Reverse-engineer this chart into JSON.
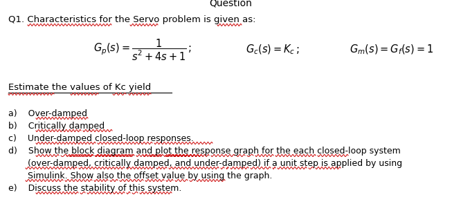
{
  "background_color": "#ffffff",
  "title_partial": "Question",
  "q1_text": "Q1. Characteristics for the Servo problem is given as:",
  "estimate_text": "Estimate the values of Kc yield",
  "items": [
    "a)    Over-damped",
    "b)    Critically damped",
    "c)    Under-damped closed-loop responses.",
    "d)    Show the block diagram and plot the response graph for the each closed-loop system",
    "       (over-damped, critically damped, and under-damped) if a unit step is applied by using",
    "       Simulink. Show also the offset value by using the graph.",
    "e)    Discuss the stability of this system."
  ],
  "wavy_color": "#cc0000",
  "black": "#000000",
  "fontsize_main": 9.5,
  "fontsize_items": 9.0
}
